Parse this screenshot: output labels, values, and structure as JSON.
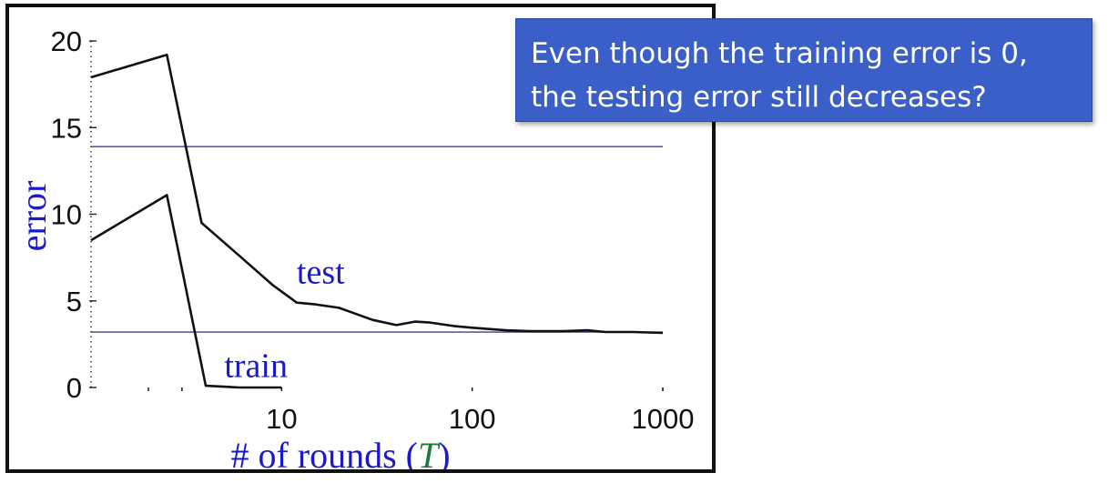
{
  "callout": {
    "lines": [
      "Even though the training error is 0,",
      "the testing error still decreases?"
    ]
  },
  "colors": {
    "data_line": "#111111",
    "reference_line": "#3b3ba0",
    "label_blue": "#1a1acc",
    "axis_var_green": "#1e7a3a",
    "callout_bg": "#3a5fc8"
  },
  "chart_data": {
    "type": "line",
    "xlabel": "# of rounds (",
    "xlabel_var": "T",
    "xlabel_close": ")",
    "ylabel": "error",
    "xscale": "log",
    "xlim": [
      1,
      1000
    ],
    "ylim": [
      0,
      20
    ],
    "xticks": [
      {
        "v": 10,
        "label": "10"
      },
      {
        "v": 100,
        "label": "100"
      },
      {
        "v": 1000,
        "label": "1000"
      }
    ],
    "yticks": [
      {
        "v": 0,
        "label": "0"
      },
      {
        "v": 5,
        "label": "5"
      },
      {
        "v": 10,
        "label": "10"
      },
      {
        "v": 15,
        "label": "15"
      },
      {
        "v": 20,
        "label": "20"
      }
    ],
    "reference_lines": [
      13.9,
      3.2
    ],
    "series": [
      {
        "name": "test",
        "points": [
          [
            1,
            17.9
          ],
          [
            2.5,
            19.2
          ],
          [
            3.8,
            9.5
          ],
          [
            6,
            7.6
          ],
          [
            9,
            5.9
          ],
          [
            12,
            4.9
          ],
          [
            15,
            4.8
          ],
          [
            20,
            4.6
          ],
          [
            30,
            3.9
          ],
          [
            40,
            3.6
          ],
          [
            50,
            3.8
          ],
          [
            60,
            3.75
          ],
          [
            80,
            3.55
          ],
          [
            100,
            3.45
          ],
          [
            150,
            3.3
          ],
          [
            200,
            3.25
          ],
          [
            300,
            3.25
          ],
          [
            400,
            3.3
          ],
          [
            500,
            3.2
          ],
          [
            700,
            3.2
          ],
          [
            1000,
            3.15
          ]
        ]
      },
      {
        "name": "train",
        "points": [
          [
            1,
            8.5
          ],
          [
            2.5,
            11.1
          ],
          [
            4,
            0.1
          ],
          [
            6,
            0.0
          ],
          [
            10,
            0.0
          ]
        ]
      }
    ]
  }
}
